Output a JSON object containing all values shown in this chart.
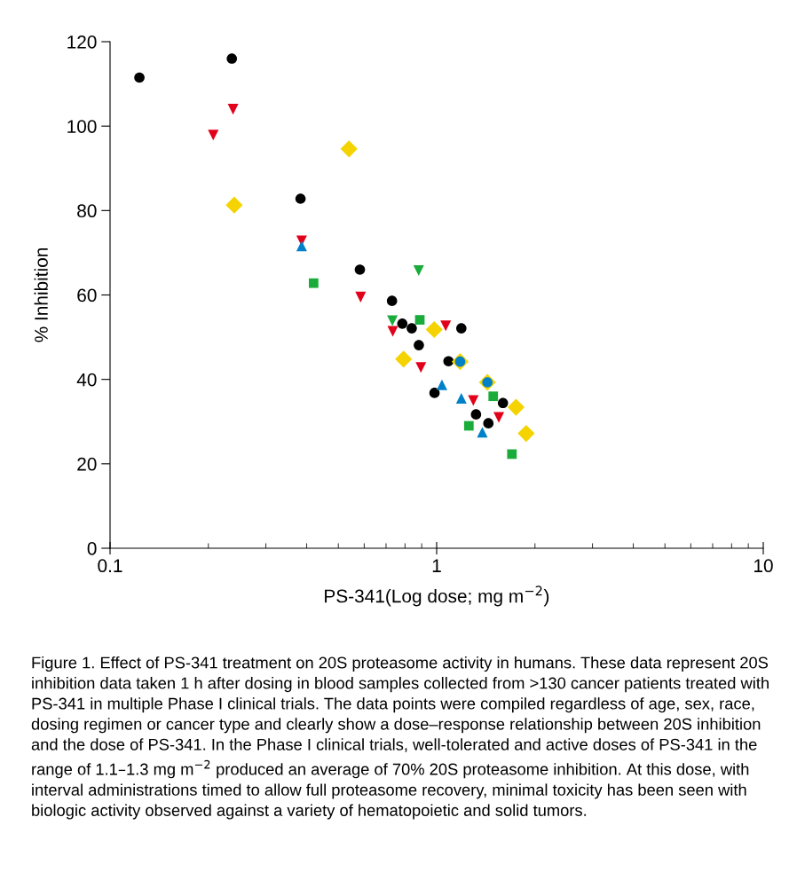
{
  "chart_data": {
    "type": "scatter",
    "xlabel": "PS-341(Log dose; mg m$^{−2}$)",
    "ylabel": "% Inhibition",
    "log": "x",
    "xlim": [
      0.1,
      10
    ],
    "xticks": [
      0.1,
      1,
      10
    ],
    "ylim": [
      0,
      120
    ],
    "yticks": [
      0,
      20,
      40,
      60,
      80,
      100,
      120
    ],
    "grid": false,
    "legend": false,
    "series": [
      {
        "color": "#000000",
        "marker": "circle",
        "x": [
          0.123,
          0.236,
          0.383,
          0.582,
          0.73,
          0.785,
          0.839,
          1.19,
          0.882,
          1.087,
          0.985,
          1.596,
          1.32,
          1.44
        ],
        "values": [
          111.5,
          116,
          82.8,
          66,
          58.6,
          53.2,
          52.1,
          52.1,
          48.1,
          44.3,
          36.8,
          34.4,
          31.7,
          29.6
        ]
      },
      {
        "color": "#e2001a",
        "marker": "triangle-down",
        "x": [
          0.238,
          0.207,
          0.386,
          0.585,
          0.734,
          1.066,
          0.895,
          1.295,
          1.55
        ],
        "values": [
          104,
          97.9,
          72.8,
          59.5,
          51.4,
          52.7,
          42.8,
          35,
          31
        ]
      },
      {
        "color": "#f5d300",
        "marker": "diamond",
        "x": [
          0.539,
          0.24,
          0.983,
          0.792,
          1.18,
          1.43,
          1.75,
          1.88
        ],
        "values": [
          94.6,
          81.3,
          51.8,
          44.8,
          44.2,
          39.3,
          33.4,
          27.2
        ]
      },
      {
        "color": "#0080c8",
        "marker": "triangle",
        "x": [
          0.386,
          1.038,
          1.19,
          1.38
        ],
        "values": [
          71.6,
          38.7,
          35.5,
          27.5
        ]
      },
      {
        "color": "#1aac3a",
        "marker": "square",
        "x": [
          0.42,
          0.888,
          1.49,
          1.255,
          1.7
        ],
        "values": [
          62.8,
          54.1,
          36,
          29,
          22.3
        ]
      },
      {
        "color": "#1aac3a",
        "marker": "triangle-down",
        "x": [
          0.881,
          0.732
        ],
        "values": [
          65.8,
          53.9
        ]
      },
      {
        "color": "#0080c8",
        "marker": "circle",
        "x": [
          1.18,
          1.43
        ],
        "values": [
          44.2,
          39.3
        ]
      }
    ],
    "annotations": [
      "Figure 1. Effect of PS-341 treatment on 20S proteasome activity in humans. These data represent 20S inhibition data taken 1 h after dosing in blood samples collected from >130 cancer patients treated with PS-341 in multiple Phase I clinical trials. The data points were compiled regardless of age, sex, race, dosing regimen or cancer type and clearly show a dose–response relationship between 20S inhibition and the dose of PS-341. In the Phase I clinical trials, well-tolerated and active doses of PS-341 in the range of 1.1–1.3 mg m$^{−2}$ produced an average of 70% 20S proteasome inhibition. At this dose, with interval administrations timed to allow full proteasome recovery, minimal toxicity has been seen with biologic activity observed against a variety of hematopoietic and solid tumors."
    ]
  }
}
